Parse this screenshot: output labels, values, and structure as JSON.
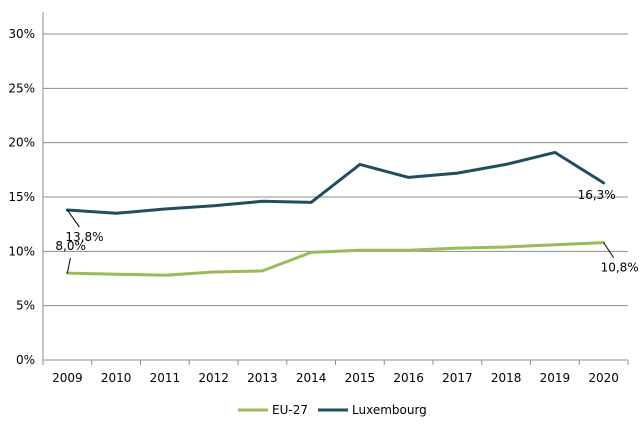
{
  "chart_data": {
    "type": "line",
    "title": "",
    "xlabel": "",
    "ylabel": "",
    "ylim": [
      0,
      30
    ],
    "y_ticks": [
      0,
      5,
      10,
      15,
      20,
      25,
      30
    ],
    "y_tick_labels": [
      "0%",
      "5%",
      "10%",
      "15%",
      "20%",
      "25%",
      "30%"
    ],
    "categories": [
      "2009",
      "2010",
      "2011",
      "2012",
      "2013",
      "2014",
      "2015",
      "2016",
      "2017",
      "2018",
      "2019",
      "2020"
    ],
    "grid": true,
    "legend_position": "bottom",
    "series": [
      {
        "name": "EU-27",
        "color": "#9bbb59",
        "values": [
          8.0,
          7.9,
          7.8,
          8.1,
          8.2,
          9.9,
          10.1,
          10.1,
          10.3,
          10.4,
          10.6,
          10.8
        ]
      },
      {
        "name": "Luxembourg",
        "color": "#1f4e5f",
        "values": [
          13.8,
          13.5,
          13.9,
          14.2,
          14.6,
          14.5,
          18.0,
          16.8,
          17.2,
          18.0,
          19.1,
          16.3
        ]
      }
    ],
    "annotations": [
      {
        "series": "Luxembourg",
        "index": 0,
        "text": "13,8%"
      },
      {
        "series": "EU-27",
        "index": 0,
        "text": "8,0%"
      },
      {
        "series": "Luxembourg",
        "index": 11,
        "text": "16,3%"
      },
      {
        "series": "EU-27",
        "index": 11,
        "text": "10,8%"
      }
    ]
  }
}
